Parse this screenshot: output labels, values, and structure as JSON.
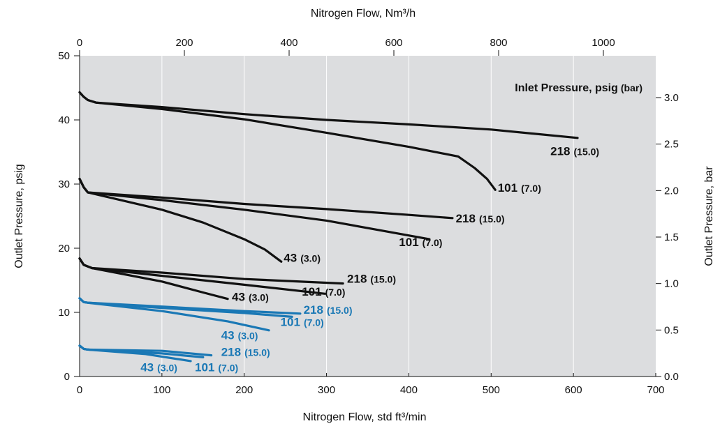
{
  "chart_data": {
    "type": "line",
    "title": "",
    "xlabel": "Nitrogen Flow, std ft³/min",
    "ylabel": "Outlet Pressure, psig",
    "x2label": "Nitrogen Flow, Nm³/h",
    "y2label": "Outlet Pressure, bar",
    "annotation": "Inlet Pressure, psig",
    "annotation_unit": "(bar)",
    "xlim": [
      0,
      700
    ],
    "ylim": [
      0,
      50
    ],
    "x2lim": [
      0,
      1100
    ],
    "y2lim": [
      0,
      3.45
    ],
    "x_ticks": [
      "0",
      "100",
      "200",
      "300",
      "400",
      "500",
      "600",
      "700"
    ],
    "y_ticks": [
      "0",
      "10",
      "20",
      "30",
      "40",
      "50"
    ],
    "x2_ticks": [
      "0",
      "200",
      "400",
      "600",
      "800",
      "1000"
    ],
    "y2_ticks": [
      "0.0",
      "0.5",
      "1.0",
      "1.5",
      "2.0",
      "2.5",
      "3.0"
    ],
    "grid": true,
    "colors": {
      "black": "#111111",
      "blue": "#1a78b5",
      "plot_bg": "#dcdddf",
      "grid": "#ffffff"
    },
    "series": [
      {
        "name": "218 (15.0)",
        "color": "black",
        "x": [
          0,
          5,
          10,
          20,
          100,
          200,
          300,
          400,
          500,
          605
        ],
        "y": [
          44.3,
          43.6,
          43.1,
          42.7,
          42.0,
          40.9,
          40.0,
          39.3,
          38.5,
          37.2
        ]
      },
      {
        "name": "101 (7.0)",
        "color": "black",
        "x": [
          0,
          5,
          10,
          20,
          100,
          200,
          300,
          400,
          460,
          480,
          495,
          505
        ],
        "y": [
          44.3,
          43.6,
          43.1,
          42.7,
          41.7,
          40.1,
          38.0,
          35.8,
          34.3,
          32.5,
          30.8,
          29.1
        ]
      },
      {
        "name": "218 (15.0)",
        "color": "black",
        "x": [
          0,
          5,
          10,
          100,
          200,
          300,
          400,
          453
        ],
        "y": [
          30.8,
          29.5,
          28.7,
          27.9,
          26.9,
          26.1,
          25.2,
          24.7
        ]
      },
      {
        "name": "101 (7.0)",
        "color": "black",
        "x": [
          0,
          5,
          10,
          100,
          200,
          300,
          425
        ],
        "y": [
          30.8,
          29.5,
          28.7,
          27.5,
          26.0,
          24.3,
          21.4
        ]
      },
      {
        "name": "43 (3.0)",
        "color": "black",
        "x": [
          0,
          5,
          10,
          100,
          150,
          200,
          225,
          245
        ],
        "y": [
          30.8,
          29.5,
          28.7,
          26.0,
          24.0,
          21.4,
          19.8,
          17.9
        ]
      },
      {
        "name": "218 (15.0)",
        "color": "black",
        "x": [
          0,
          5,
          15,
          100,
          200,
          320
        ],
        "y": [
          18.4,
          17.4,
          16.9,
          16.2,
          15.2,
          14.5
        ]
      },
      {
        "name": "101 (7.0)",
        "color": "black",
        "x": [
          0,
          5,
          15,
          100,
          200,
          298
        ],
        "y": [
          18.4,
          17.4,
          16.9,
          15.7,
          14.3,
          12.9
        ]
      },
      {
        "name": "43 (3.0)",
        "color": "black",
        "x": [
          0,
          5,
          15,
          100,
          150,
          180
        ],
        "y": [
          18.4,
          17.4,
          16.9,
          14.8,
          13.1,
          12.1
        ]
      },
      {
        "name": "218 (15.0)",
        "color": "blue",
        "x": [
          0,
          5,
          10,
          100,
          200,
          268
        ],
        "y": [
          12.2,
          11.6,
          11.5,
          10.9,
          10.2,
          9.8
        ]
      },
      {
        "name": "101 (7.0)",
        "color": "blue",
        "x": [
          0,
          5,
          10,
          100,
          200,
          258
        ],
        "y": [
          12.2,
          11.6,
          11.5,
          10.7,
          9.9,
          9.3
        ]
      },
      {
        "name": "43 (3.0)",
        "color": "blue",
        "x": [
          0,
          5,
          10,
          100,
          180,
          230
        ],
        "y": [
          12.2,
          11.6,
          11.5,
          10.2,
          8.6,
          7.2
        ]
      },
      {
        "name": "218 (15.0)",
        "color": "blue",
        "x": [
          0,
          5,
          10,
          100,
          160
        ],
        "y": [
          4.8,
          4.3,
          4.2,
          4.0,
          3.3
        ]
      },
      {
        "name": "101 (7.0)",
        "color": "blue",
        "x": [
          0,
          5,
          10,
          100,
          150
        ],
        "y": [
          4.8,
          4.3,
          4.2,
          3.6,
          3.0
        ]
      },
      {
        "name": "43 (3.0)",
        "color": "blue",
        "x": [
          0,
          5,
          10,
          80,
          135
        ],
        "y": [
          4.8,
          4.3,
          4.2,
          3.5,
          2.4
        ]
      }
    ],
    "curve_labels": [
      {
        "value": "218",
        "unit": "(15.0)",
        "color": "black",
        "x": 572,
        "y": 34.5
      },
      {
        "value": "101",
        "unit": "(7.0)",
        "color": "black",
        "x": 508,
        "y": 28.8
      },
      {
        "value": "218",
        "unit": "(15.0)",
        "color": "black",
        "x": 457,
        "y": 24.0
      },
      {
        "value": "101",
        "unit": "(7.0)",
        "color": "black",
        "x": 388,
        "y": 20.3
      },
      {
        "value": "43",
        "unit": "(3.0)",
        "color": "black",
        "x": 248,
        "y": 17.9
      },
      {
        "value": "218",
        "unit": "(15.0)",
        "color": "black",
        "x": 325,
        "y": 14.6
      },
      {
        "value": "101",
        "unit": "(7.0)",
        "color": "black",
        "x": 270,
        "y": 12.6
      },
      {
        "value": "43",
        "unit": "(3.0)",
        "color": "black",
        "x": 185,
        "y": 11.8
      },
      {
        "value": "218",
        "unit": "(15.0)",
        "color": "blue",
        "x": 272,
        "y": 9.8
      },
      {
        "value": "101",
        "unit": "(7.0)",
        "color": "blue",
        "x": 244,
        "y": 7.9
      },
      {
        "value": "43",
        "unit": "(3.0)",
        "color": "blue",
        "x": 172,
        "y": 5.8
      },
      {
        "value": "218",
        "unit": "(15.0)",
        "color": "blue",
        "x": 172,
        "y": 3.2
      },
      {
        "value": "43",
        "unit": "(3.0)",
        "color": "blue",
        "x": 74,
        "y": 0.8
      },
      {
        "value": "101",
        "unit": "(7.0)",
        "color": "blue",
        "x": 140,
        "y": 0.8
      }
    ]
  }
}
